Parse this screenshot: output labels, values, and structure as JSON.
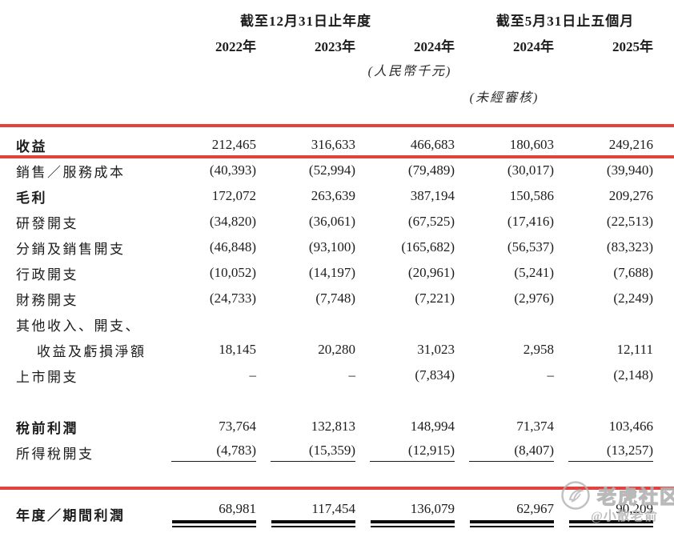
{
  "header": {
    "period_group_annual": "截至12月31日止年度",
    "period_group_five_months": "截至5月31日止五個月",
    "years": [
      "2022年",
      "2023年",
      "2024年",
      "2024年",
      "2025年"
    ],
    "currency_note": "(人民幣千元)",
    "unaudited_note": "(未經審核)"
  },
  "table": {
    "rows": [
      {
        "label": "收益",
        "bold": true,
        "highlight": true,
        "values": [
          "212,465",
          "316,633",
          "466,683",
          "180,603",
          "249,216"
        ]
      },
      {
        "label": "銷售／服務成本",
        "values": [
          "(40,393)",
          "(52,994)",
          "(79,489)",
          "(30,017)",
          "(39,940)"
        ]
      },
      {
        "label": "毛利",
        "bold": true,
        "values": [
          "172,072",
          "263,639",
          "387,194",
          "150,586",
          "209,276"
        ]
      },
      {
        "label": "研發開支",
        "values": [
          "(34,820)",
          "(36,061)",
          "(67,525)",
          "(17,416)",
          "(22,513)"
        ]
      },
      {
        "label": "分銷及銷售開支",
        "values": [
          "(46,848)",
          "(93,100)",
          "(165,682)",
          "(56,537)",
          "(83,323)"
        ]
      },
      {
        "label": "行政開支",
        "values": [
          "(10,052)",
          "(14,197)",
          "(20,961)",
          "(5,241)",
          "(7,688)"
        ]
      },
      {
        "label": "財務開支",
        "values": [
          "(24,733)",
          "(7,748)",
          "(7,221)",
          "(2,976)",
          "(2,249)"
        ]
      },
      {
        "label": "其他收入、開支、",
        "values": [
          "",
          "",
          "",
          "",
          ""
        ]
      },
      {
        "label": "收益及虧損淨額",
        "indent": true,
        "values": [
          "18,145",
          "20,280",
          "31,023",
          "2,958",
          "12,111"
        ]
      },
      {
        "label": "上市開支",
        "values": [
          "–",
          "–",
          "(7,834)",
          "–",
          "(2,148)"
        ]
      },
      {
        "label": "",
        "spacer": true,
        "values": [
          "",
          "",
          "",
          "",
          ""
        ]
      },
      {
        "label": "稅前利潤",
        "bold": true,
        "values": [
          "73,764",
          "132,813",
          "148,994",
          "71,374",
          "103,466"
        ]
      },
      {
        "label": "所得稅開支",
        "rule": "single",
        "values": [
          "(4,783)",
          "(15,359)",
          "(12,915)",
          "(8,407)",
          "(13,257)"
        ]
      },
      {
        "label": "",
        "gap": true,
        "values": [
          "",
          "",
          "",
          "",
          ""
        ]
      },
      {
        "label": "年度／期間利潤",
        "bold": true,
        "highlight": true,
        "tall": true,
        "rule": "double",
        "values": [
          "68,981",
          "117,454",
          "136,079",
          "62,967",
          "90,209"
        ]
      }
    ]
  },
  "watermark": {
    "community": "老虎社区",
    "handle": "@小散老俞"
  },
  "colors": {
    "highlight_border": "#e2433f",
    "text": "#1c1c1c",
    "watermark_gray": "#b2b2b2"
  }
}
